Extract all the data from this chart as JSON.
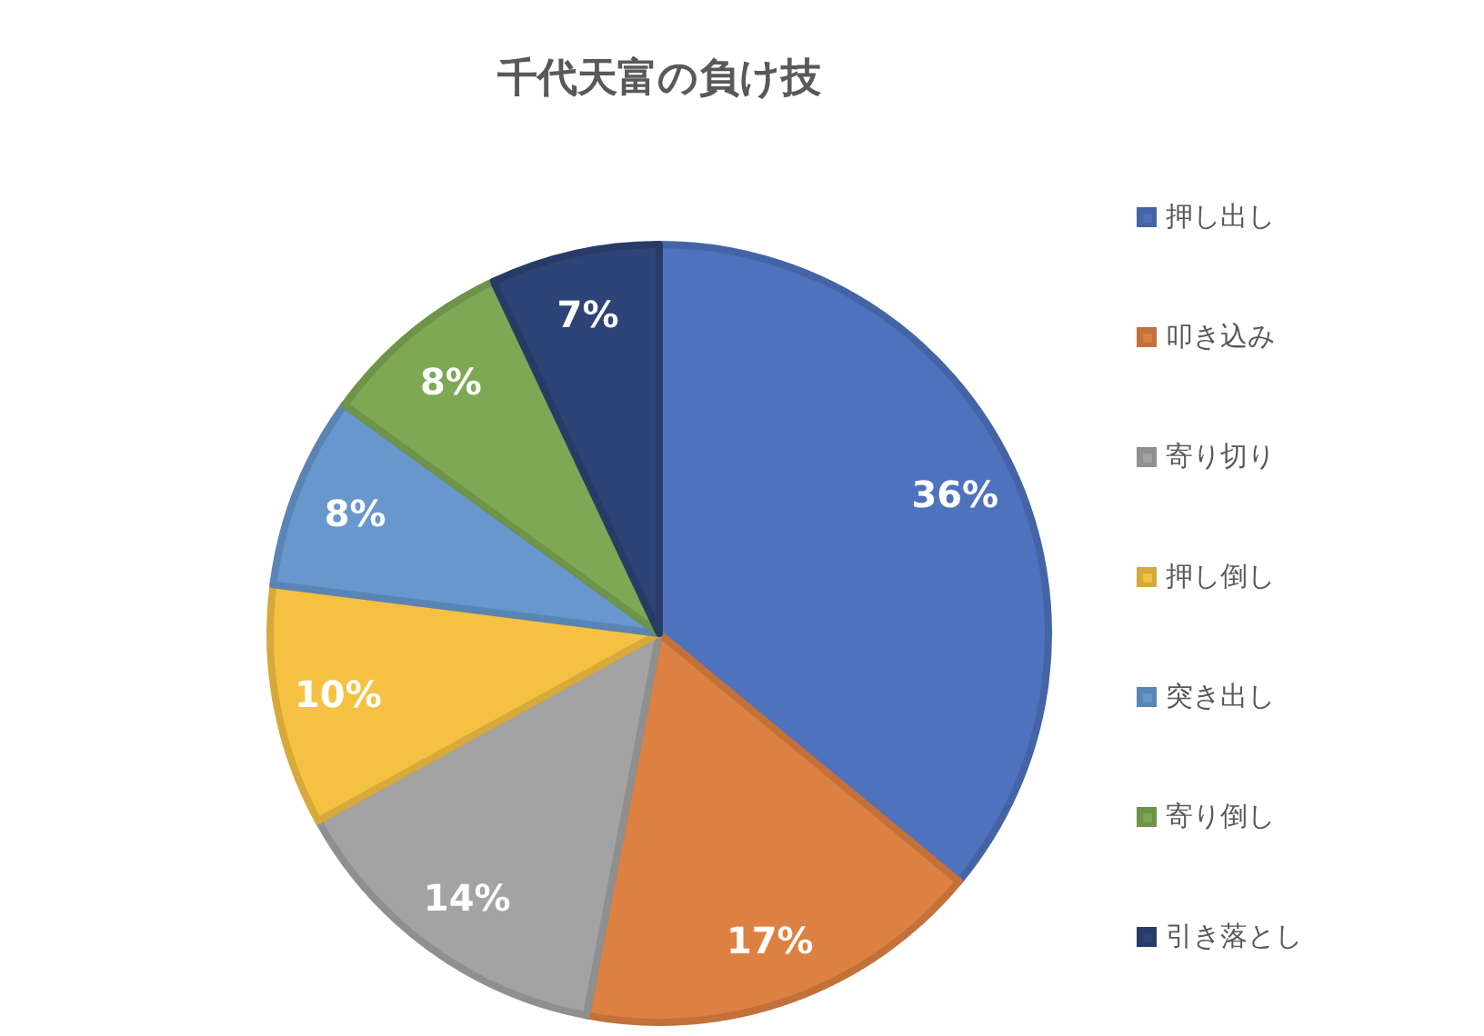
{
  "chart_data": {
    "type": "pie",
    "title": "千代天富の負け技",
    "categories": [
      "押し出し",
      "叩き込み",
      "寄り切り",
      "押し倒し",
      "突き出し",
      "寄り倒し",
      "引き落とし"
    ],
    "values": [
      36,
      17,
      14,
      10,
      8,
      8,
      7
    ],
    "colors": [
      "#4e72bd",
      "#dd8143",
      "#a3a3a3",
      "#f4c142",
      "#6797cd",
      "#7ea853",
      "#2e4476"
    ],
    "value_labels": [
      "36%",
      "17%",
      "14%",
      "10%",
      "8%",
      "8%",
      "7%"
    ],
    "legend": "right"
  }
}
